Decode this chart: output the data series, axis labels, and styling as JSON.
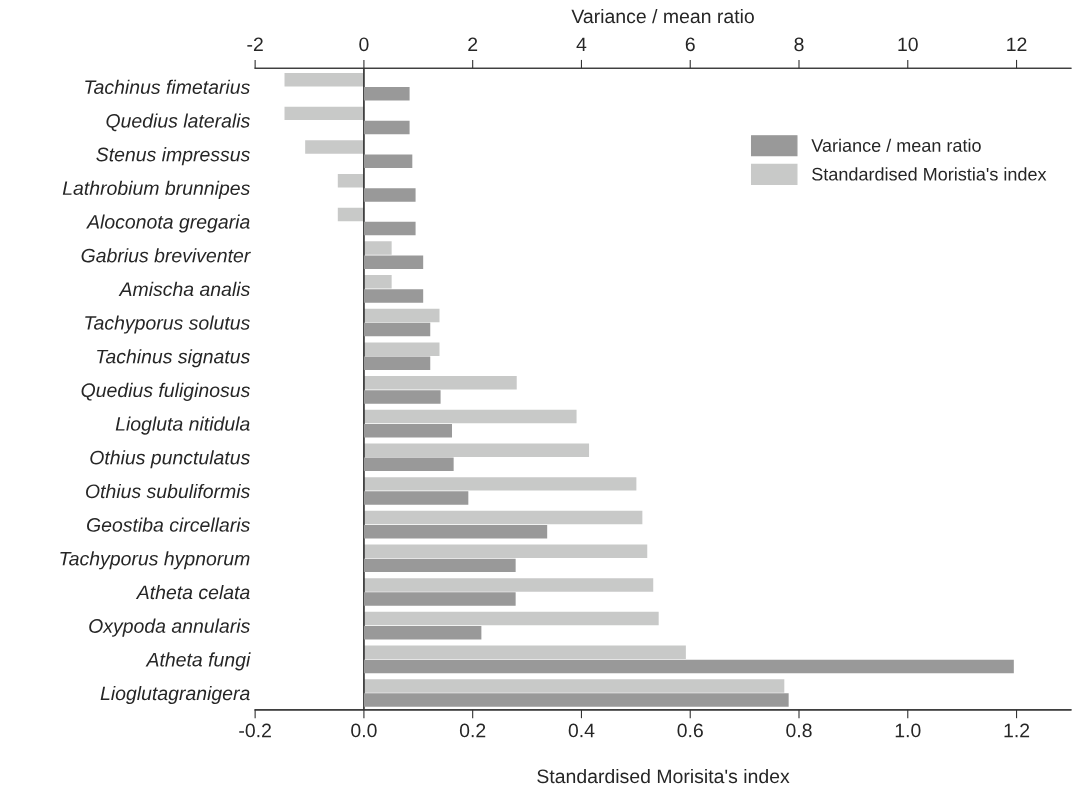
{
  "chart_data": {
    "type": "bar",
    "orientation": "horizontal",
    "xlabel": "Standardised Morisita's index",
    "x2label": "Variance / mean ratio",
    "categories": [
      "Tachinus fimetarius",
      "Quedius lateralis",
      "Stenus impressus",
      "Lathrobium brunnipes",
      "Aloconota gregaria",
      "Gabrius breviventer",
      "Amischa analis",
      "Tachyporus solutus",
      "Tachinus signatus",
      "Quedius fuliginosus",
      "Liogluta nitidula",
      "Othius punctulatus",
      "Othius subuliformis",
      "Geostiba circellaris",
      "Tachyporus hypnorum",
      "Atheta celata",
      "Oxypoda annularis",
      "Atheta fungi",
      "Lioglutagranigera"
    ],
    "series": [
      {
        "name": "Variance / mean ratio",
        "color": "#999999",
        "axis": "x2",
        "values": [
          0.84,
          0.84,
          0.89,
          0.95,
          0.95,
          1.09,
          1.09,
          1.22,
          1.22,
          1.41,
          1.62,
          1.65,
          1.92,
          3.37,
          2.79,
          2.79,
          2.16,
          11.95,
          7.81
        ]
      },
      {
        "name": "Standardised Moristia's index",
        "color": "#c8c9c8",
        "values": [
          -0.146,
          -0.146,
          -0.108,
          -0.048,
          -0.048,
          0.051,
          0.051,
          0.139,
          0.139,
          0.281,
          0.391,
          0.414,
          0.501,
          0.512,
          0.521,
          0.532,
          0.542,
          0.592,
          0.773
        ]
      }
    ],
    "xlim": [
      -0.2,
      1.3
    ],
    "xticks": [
      {
        "value": -0.2,
        "label": "-0.2"
      },
      {
        "value": 0,
        "label": "0.0"
      },
      {
        "value": 0.2,
        "label": "0.2"
      },
      {
        "value": 0.4,
        "label": "0.4"
      },
      {
        "value": 0.6,
        "label": "0.6"
      },
      {
        "value": 0.8,
        "label": "0.8"
      },
      {
        "value": 1.0,
        "label": "1.0"
      },
      {
        "value": 1.2,
        "label": "1.2"
      }
    ],
    "x2lim": [
      -2,
      13
    ],
    "x2ticks": [
      -2,
      0,
      2,
      4,
      6,
      8,
      10,
      12
    ],
    "ref_lines": [
      {
        "axis": "x",
        "value": 0,
        "color": "#333333"
      }
    ],
    "grid": false,
    "legend": "top right"
  }
}
